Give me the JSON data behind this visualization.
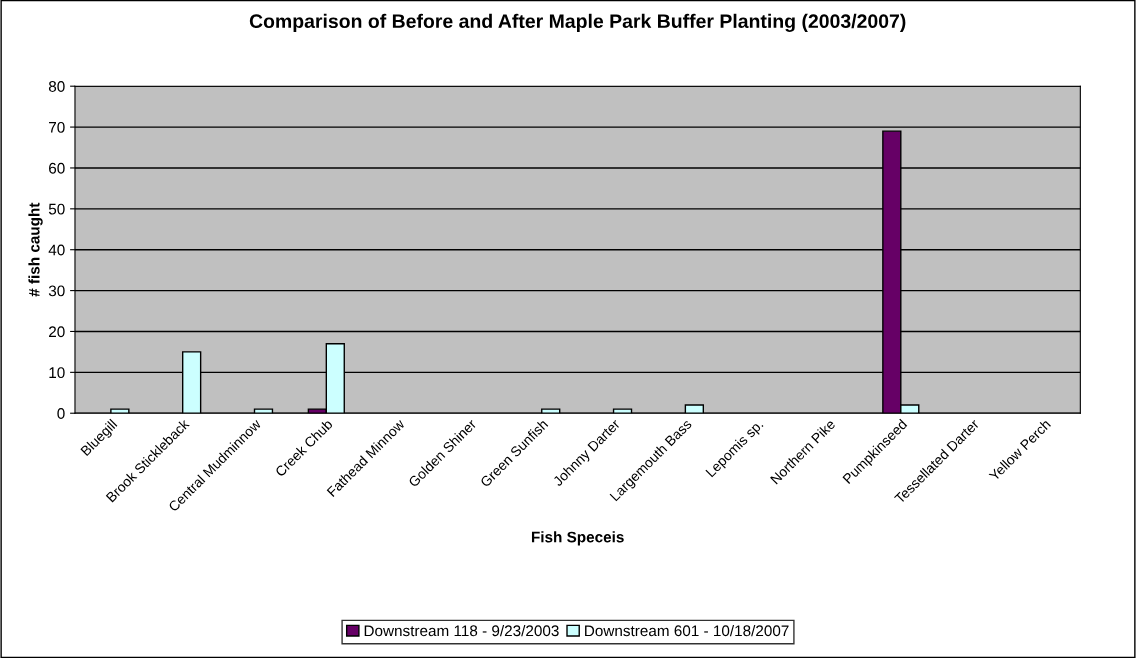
{
  "chart_data": {
    "type": "bar",
    "title": "Comparison of Before and After Maple Park Buffer Planting (2003/2007)",
    "xlabel": "Fish Speceis",
    "ylabel": "# fish caught",
    "categories": [
      "Bluegill",
      "Brook Stickleback",
      "Central Mudminnow",
      "Creek Chub",
      "Fathead Minnow",
      "Golden Shiner",
      "Green Sunfish",
      "Johnny Darter",
      "Largemouth Bass",
      "Lepomis sp.",
      "Northern Pike",
      "Pumpkinseed",
      "Tessellated Darter",
      "Yellow Perch"
    ],
    "series": [
      {
        "name": "Downstream 118 - 9/23/2003",
        "color": "#660066",
        "values": [
          null,
          null,
          null,
          1,
          null,
          null,
          null,
          null,
          null,
          null,
          null,
          69,
          null,
          null
        ]
      },
      {
        "name": "Downstream 601 - 10/18/2007",
        "color": "#ccffff",
        "values": [
          1,
          15,
          1,
          17,
          null,
          null,
          1,
          1,
          2,
          null,
          null,
          2,
          null,
          null
        ]
      }
    ],
    "ylim": [
      0,
      80
    ],
    "yticks": [
      0,
      10,
      20,
      30,
      40,
      50,
      60,
      70,
      80
    ],
    "grid": "y",
    "legend": "bottom"
  }
}
